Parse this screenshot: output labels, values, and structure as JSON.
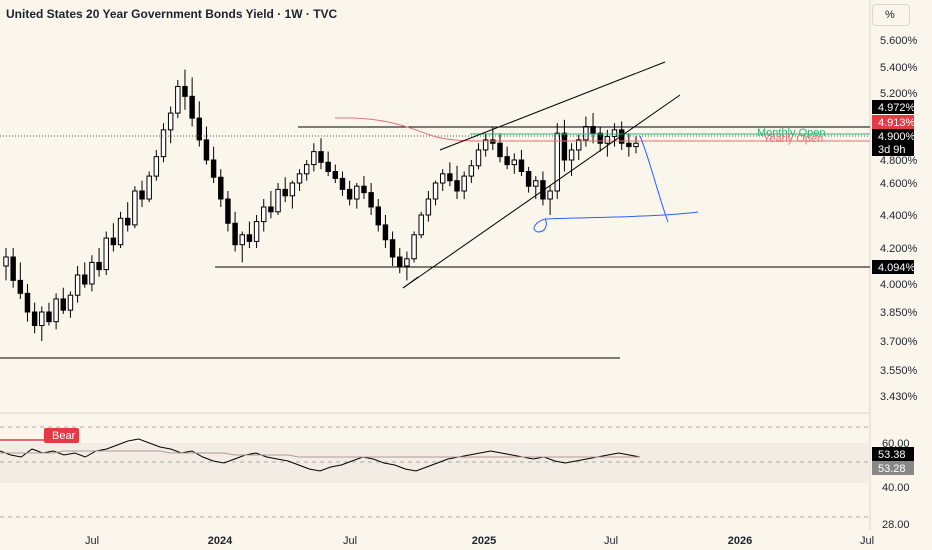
{
  "header": {
    "title": "United States 20 Year Government Bonds Yield · 1W · TVC",
    "currency_label": "%"
  },
  "colors": {
    "background": "#fbf6ec",
    "up": "#ffffff",
    "down": "#000000",
    "monthly_open": "#2db37a",
    "yearly_open": "#e57373",
    "badge_black": "#000000",
    "badge_red": "#e53946",
    "blue_drawing": "#2962ff",
    "rsi_band": "#f2ece4"
  },
  "chart_data": [
    {
      "type": "candlestick",
      "title": "United States 20 Year Government Bonds Yield · 1W · TVC",
      "y_ticks": [
        "5.600%",
        "5.400%",
        "5.200%",
        "4.800%",
        "4.600%",
        "4.400%",
        "4.200%",
        "4.000%",
        "3.850%",
        "3.700%",
        "3.550%",
        "3.430%"
      ],
      "x_ticks": [
        "Jul",
        "2024",
        "Jul",
        "2025",
        "Jul",
        "2026",
        "Jul"
      ],
      "price_badges": [
        {
          "label": "4.972%",
          "style": "black"
        },
        {
          "label": "4.913%",
          "style": "red"
        },
        {
          "label": "4.900%",
          "style": "black"
        },
        {
          "label": "3d 9h",
          "style": "black"
        },
        {
          "label": "4.094%",
          "style": "black"
        }
      ],
      "annotations": [
        "Monthly Open",
        "Yearly Open"
      ],
      "ohlc_weekly": [
        [
          4.1,
          4.2,
          4.02,
          4.15
        ],
        [
          4.15,
          4.2,
          3.98,
          4.02
        ],
        [
          4.02,
          4.12,
          3.92,
          3.95
        ],
        [
          3.95,
          4.0,
          3.8,
          3.85
        ],
        [
          3.85,
          3.9,
          3.74,
          3.78
        ],
        [
          3.78,
          3.88,
          3.7,
          3.85
        ],
        [
          3.85,
          3.9,
          3.78,
          3.8
        ],
        [
          3.8,
          3.95,
          3.76,
          3.92
        ],
        [
          3.92,
          3.98,
          3.84,
          3.86
        ],
        [
          3.86,
          3.96,
          3.82,
          3.94
        ],
        [
          3.94,
          4.1,
          3.9,
          4.05
        ],
        [
          4.05,
          4.12,
          3.98,
          4.0
        ],
        [
          4.0,
          4.16,
          3.96,
          4.12
        ],
        [
          4.12,
          4.2,
          4.04,
          4.08
        ],
        [
          4.08,
          4.3,
          4.05,
          4.26
        ],
        [
          4.26,
          4.35,
          4.18,
          4.22
        ],
        [
          4.22,
          4.42,
          4.2,
          4.38
        ],
        [
          4.38,
          4.48,
          4.3,
          4.34
        ],
        [
          4.34,
          4.58,
          4.32,
          4.55
        ],
        [
          4.55,
          4.62,
          4.45,
          4.5
        ],
        [
          4.5,
          4.7,
          4.48,
          4.66
        ],
        [
          4.66,
          4.86,
          4.62,
          4.82
        ],
        [
          4.82,
          5.02,
          4.78,
          4.98
        ],
        [
          4.98,
          5.12,
          4.9,
          5.08
        ],
        [
          5.08,
          5.3,
          5.05,
          5.25
        ],
        [
          5.25,
          5.38,
          5.1,
          5.18
        ],
        [
          5.18,
          5.32,
          5.0,
          5.05
        ],
        [
          5.05,
          5.15,
          4.88,
          4.92
        ],
        [
          4.92,
          5.0,
          4.76,
          4.8
        ],
        [
          4.8,
          4.88,
          4.6,
          4.65
        ],
        [
          4.65,
          4.72,
          4.45,
          4.5
        ],
        [
          4.5,
          4.55,
          4.3,
          4.35
        ],
        [
          4.35,
          4.42,
          4.18,
          4.22
        ],
        [
          4.22,
          4.3,
          4.12,
          4.28
        ],
        [
          4.28,
          4.36,
          4.2,
          4.24
        ],
        [
          4.24,
          4.4,
          4.2,
          4.36
        ],
        [
          4.36,
          4.5,
          4.3,
          4.45
        ],
        [
          4.45,
          4.55,
          4.38,
          4.42
        ],
        [
          4.42,
          4.6,
          4.4,
          4.56
        ],
        [
          4.56,
          4.65,
          4.48,
          4.52
        ],
        [
          4.52,
          4.62,
          4.44,
          4.6
        ],
        [
          4.6,
          4.72,
          4.55,
          4.68
        ],
        [
          4.68,
          4.8,
          4.62,
          4.76
        ],
        [
          4.76,
          4.9,
          4.7,
          4.85
        ],
        [
          4.85,
          4.93,
          4.72,
          4.78
        ],
        [
          4.78,
          4.85,
          4.66,
          4.7
        ],
        [
          4.7,
          4.76,
          4.6,
          4.64
        ],
        [
          4.64,
          4.7,
          4.52,
          4.56
        ],
        [
          4.56,
          4.62,
          4.46,
          4.5
        ],
        [
          4.5,
          4.6,
          4.44,
          4.58
        ],
        [
          4.58,
          4.66,
          4.5,
          4.54
        ],
        [
          4.54,
          4.6,
          4.4,
          4.45
        ],
        [
          4.45,
          4.5,
          4.3,
          4.34
        ],
        [
          4.34,
          4.4,
          4.2,
          4.25
        ],
        [
          4.25,
          4.3,
          4.1,
          4.15
        ],
        [
          4.15,
          4.2,
          4.06,
          4.1
        ],
        [
          4.1,
          4.18,
          4.02,
          4.14
        ],
        [
          4.14,
          4.3,
          4.12,
          4.28
        ],
        [
          4.28,
          4.42,
          4.26,
          4.4
        ],
        [
          4.4,
          4.55,
          4.36,
          4.5
        ],
        [
          4.5,
          4.62,
          4.46,
          4.6
        ],
        [
          4.6,
          4.72,
          4.55,
          4.68
        ],
        [
          4.68,
          4.78,
          4.58,
          4.62
        ],
        [
          4.62,
          4.75,
          4.5,
          4.55
        ],
        [
          4.55,
          4.7,
          4.5,
          4.66
        ],
        [
          4.66,
          4.8,
          4.6,
          4.75
        ],
        [
          4.75,
          4.9,
          4.72,
          4.86
        ],
        [
          4.86,
          4.96,
          4.82,
          4.92
        ],
        [
          4.92,
          5.0,
          4.86,
          4.9
        ],
        [
          4.9,
          4.96,
          4.78,
          4.82
        ],
        [
          4.82,
          4.88,
          4.72,
          4.76
        ],
        [
          4.76,
          4.84,
          4.68,
          4.8
        ],
        [
          4.8,
          4.86,
          4.66,
          4.7
        ],
        [
          4.7,
          4.74,
          4.54,
          4.58
        ],
        [
          4.58,
          4.66,
          4.5,
          4.62
        ],
        [
          4.62,
          4.7,
          4.46,
          4.5
        ],
        [
          4.5,
          4.58,
          4.4,
          4.55
        ],
        [
          4.55,
          5.02,
          4.5,
          4.96
        ],
        [
          4.96,
          5.04,
          4.7,
          4.8
        ],
        [
          4.8,
          4.9,
          4.66,
          4.86
        ],
        [
          4.86,
          4.95,
          4.8,
          4.92
        ],
        [
          4.92,
          5.06,
          4.88,
          5.0
        ],
        [
          5.0,
          5.08,
          4.9,
          4.96
        ],
        [
          4.96,
          5.0,
          4.85,
          4.9
        ],
        [
          4.9,
          4.98,
          4.82,
          4.94
        ],
        [
          4.94,
          5.02,
          4.88,
          4.98
        ],
        [
          4.98,
          5.03,
          4.86,
          4.9
        ],
        [
          4.9,
          4.96,
          4.82,
          4.88
        ],
        [
          4.88,
          4.94,
          4.84,
          4.9
        ]
      ]
    },
    {
      "type": "line",
      "title": "",
      "y_ticks": [
        "60.00",
        "53.38",
        "53.28",
        "40.00",
        "28.00"
      ],
      "badges": [
        {
          "label": "53.38",
          "style": "black"
        },
        {
          "label": "53.28",
          "style": "gray"
        }
      ],
      "label": "Bear",
      "series": [
        {
          "values": [
            56,
            54,
            53,
            57,
            55,
            56,
            54,
            55,
            53,
            56,
            57,
            59,
            61,
            62,
            60,
            58,
            57,
            55,
            56,
            53,
            51,
            50,
            52,
            54,
            55,
            53,
            52,
            51,
            49,
            47,
            46,
            48,
            49,
            51,
            53,
            52,
            50,
            49,
            47,
            46,
            48,
            50,
            52,
            53,
            54,
            55,
            56,
            55,
            54,
            53,
            52,
            53,
            51,
            50,
            51,
            52,
            53,
            54,
            55,
            54,
            53
          ]
        },
        {
          "values": [
            55,
            55,
            55,
            55,
            55,
            55,
            56,
            56,
            56,
            56,
            56,
            56,
            56,
            56,
            56,
            56,
            55,
            55,
            55,
            55,
            55,
            55,
            54,
            54,
            54,
            54,
            54,
            54,
            53,
            53,
            53,
            53,
            53,
            53,
            53,
            53,
            53,
            53,
            53,
            53,
            53,
            53,
            53,
            53,
            53,
            53,
            53,
            53,
            53,
            53,
            53,
            53,
            53,
            53,
            53,
            53,
            53,
            53,
            53,
            53,
            53
          ]
        }
      ]
    }
  ]
}
